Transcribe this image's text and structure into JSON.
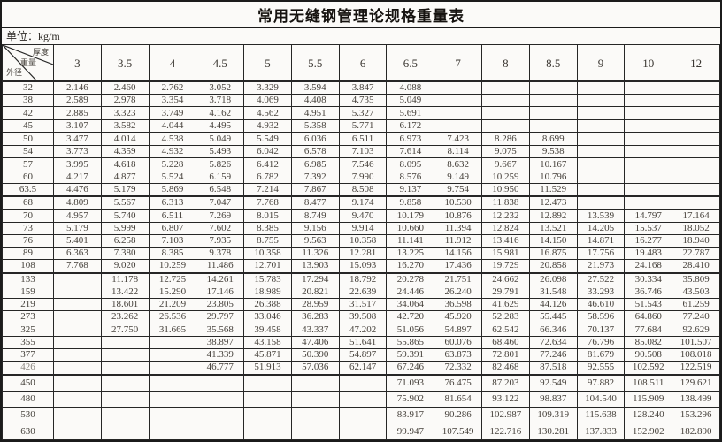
{
  "page": {
    "title": "常用无缝钢管理论规格重量表",
    "unit_label": "单位：kg/m"
  },
  "colors": {
    "background": "#fbfaf8",
    "border": "#1b1b1b",
    "text": "#3e3a36"
  },
  "table": {
    "corner": {
      "top_label": "厚度",
      "mid_label": "重量",
      "bottom_label": "外径"
    },
    "thickness_headers": [
      "3",
      "3.5",
      "4",
      "4.5",
      "5",
      "5.5",
      "6",
      "6.5",
      "7",
      "8",
      "8.5",
      "9",
      "10",
      "12"
    ],
    "rows": [
      {
        "od": "32",
        "values": [
          "2.146",
          "2.460",
          "2.762",
          "3.052",
          "3.329",
          "3.594",
          "3.847",
          "4.088",
          "",
          "",
          "",
          "",
          "",
          ""
        ]
      },
      {
        "od": "38",
        "values": [
          "2.589",
          "2.978",
          "3.354",
          "3.718",
          "4.069",
          "4.408",
          "4.735",
          "5.049",
          "",
          "",
          "",
          "",
          "",
          ""
        ]
      },
      {
        "od": "42",
        "values": [
          "2.885",
          "3.323",
          "3.749",
          "4.162",
          "4.562",
          "4.951",
          "5.327",
          "5.691",
          "",
          "",
          "",
          "",
          "",
          ""
        ]
      },
      {
        "od": "45",
        "values": [
          "3.107",
          "3.582",
          "4.044",
          "4.495",
          "4.932",
          "5.358",
          "5.771",
          "6.172",
          "",
          "",
          "",
          "",
          "",
          ""
        ]
      },
      {
        "od": "50",
        "values": [
          "3.477",
          "4.014",
          "4.538",
          "5.049",
          "5.549",
          "6.036",
          "6.511",
          "6.973",
          "7.423",
          "8.286",
          "8.699",
          "",
          "",
          ""
        ]
      },
      {
        "od": "54",
        "values": [
          "3.773",
          "4.359",
          "4.932",
          "5.493",
          "6.042",
          "6.578",
          "7.103",
          "7.614",
          "8.114",
          "9.075",
          "9.538",
          "",
          "",
          ""
        ]
      },
      {
        "od": "57",
        "values": [
          "3.995",
          "4.618",
          "5.228",
          "5.826",
          "6.412",
          "6.985",
          "7.546",
          "8.095",
          "8.632",
          "9.667",
          "10.167",
          "",
          "",
          ""
        ]
      },
      {
        "od": "60",
        "values": [
          "4.217",
          "4.877",
          "5.524",
          "6.159",
          "6.782",
          "7.392",
          "7.990",
          "8.576",
          "9.149",
          "10.259",
          "10.796",
          "",
          "",
          ""
        ]
      },
      {
        "od": "63.5",
        "values": [
          "4.476",
          "5.179",
          "5.869",
          "6.548",
          "7.214",
          "7.867",
          "8.508",
          "9.137",
          "9.754",
          "10.950",
          "11.529",
          "",
          "",
          ""
        ]
      },
      {
        "od": "68",
        "values": [
          "4.809",
          "5.567",
          "6.313",
          "7.047",
          "7.768",
          "8.477",
          "9.174",
          "9.858",
          "10.530",
          "11.838",
          "12.473",
          "",
          "",
          ""
        ]
      },
      {
        "od": "70",
        "values": [
          "4.957",
          "5.740",
          "6.511",
          "7.269",
          "8.015",
          "8.749",
          "9.470",
          "10.179",
          "10.876",
          "12.232",
          "12.892",
          "13.539",
          "14.797",
          "17.164"
        ]
      },
      {
        "od": "73",
        "values": [
          "5.179",
          "5.999",
          "6.807",
          "7.602",
          "8.385",
          "9.156",
          "9.914",
          "10.660",
          "11.394",
          "12.824",
          "13.521",
          "14.205",
          "15.537",
          "18.052"
        ]
      },
      {
        "od": "76",
        "values": [
          "5.401",
          "6.258",
          "7.103",
          "7.935",
          "8.755",
          "9.563",
          "10.358",
          "11.141",
          "11.912",
          "13.416",
          "14.150",
          "14.871",
          "16.277",
          "18.940"
        ]
      },
      {
        "od": "89",
        "values": [
          "6.363",
          "7.380",
          "8.385",
          "9.378",
          "10.358",
          "11.326",
          "12.281",
          "13.225",
          "14.156",
          "15.981",
          "16.875",
          "17.756",
          "19.483",
          "22.787"
        ]
      },
      {
        "od": "108",
        "values": [
          "7.768",
          "9.020",
          "10.259",
          "11.486",
          "12.701",
          "13.903",
          "15.093",
          "16.270",
          "17.436",
          "19.729",
          "20.858",
          "21.973",
          "24.168",
          "28.410"
        ]
      },
      {
        "od": "133",
        "values": [
          "",
          "11.178",
          "12.725",
          "14.261",
          "15.783",
          "17.294",
          "18.792",
          "20.278",
          "21.751",
          "24.662",
          "26.098",
          "27.522",
          "30.334",
          "35.809"
        ]
      },
      {
        "od": "159",
        "values": [
          "",
          "13.422",
          "15.290",
          "17.146",
          "18.989",
          "20.821",
          "22.639",
          "24.446",
          "26.240",
          "29.791",
          "31.548",
          "33.293",
          "36.746",
          "43.503"
        ]
      },
      {
        "od": "219",
        "values": [
          "",
          "18.601",
          "21.209",
          "23.805",
          "26.388",
          "28.959",
          "31.517",
          "34.064",
          "36.598",
          "41.629",
          "44.126",
          "46.610",
          "51.543",
          "61.259"
        ]
      },
      {
        "od": "273",
        "values": [
          "",
          "23.262",
          "26.536",
          "29.797",
          "33.046",
          "36.283",
          "39.508",
          "42.720",
          "45.920",
          "52.283",
          "55.445",
          "58.596",
          "64.860",
          "77.240"
        ]
      },
      {
        "od": "325",
        "values": [
          "",
          "27.750",
          "31.665",
          "35.568",
          "39.458",
          "43.337",
          "47.202",
          "51.056",
          "54.897",
          "62.542",
          "66.346",
          "70.137",
          "77.684",
          "92.629"
        ]
      },
      {
        "od": "355",
        "values": [
          "",
          "",
          "",
          "38.897",
          "43.158",
          "47.406",
          "51.641",
          "55.865",
          "60.076",
          "68.460",
          "72.634",
          "76.796",
          "85.082",
          "101.507"
        ]
      },
      {
        "od": "377",
        "values": [
          "",
          "",
          "",
          "41.339",
          "45.871",
          "50.390",
          "54.897",
          "59.391",
          "63.873",
          "72.801",
          "77.246",
          "81.679",
          "90.508",
          "108.018"
        ]
      },
      {
        "od": "426",
        "values": [
          "",
          "",
          "",
          "46.777",
          "51.913",
          "57.036",
          "62.147",
          "67.246",
          "72.332",
          "82.468",
          "87.518",
          "92.555",
          "102.592",
          "122.519"
        ]
      },
      {
        "od": "450",
        "values": [
          "",
          "",
          "",
          "",
          "",
          "",
          "",
          "71.093",
          "76.475",
          "87.203",
          "92.549",
          "97.882",
          "108.511",
          "129.621"
        ]
      },
      {
        "od": "480",
        "values": [
          "",
          "",
          "",
          "",
          "",
          "",
          "",
          "75.902",
          "81.654",
          "93.122",
          "98.837",
          "104.540",
          "115.909",
          "138.499"
        ]
      },
      {
        "od": "530",
        "values": [
          "",
          "",
          "",
          "",
          "",
          "",
          "",
          "83.917",
          "90.286",
          "102.987",
          "109.319",
          "115.638",
          "128.240",
          "153.296"
        ]
      },
      {
        "od": "630",
        "values": [
          "",
          "",
          "",
          "",
          "",
          "",
          "",
          "99.947",
          "107.549",
          "122.716",
          "130.281",
          "137.833",
          "152.902",
          "182.890"
        ]
      }
    ]
  }
}
